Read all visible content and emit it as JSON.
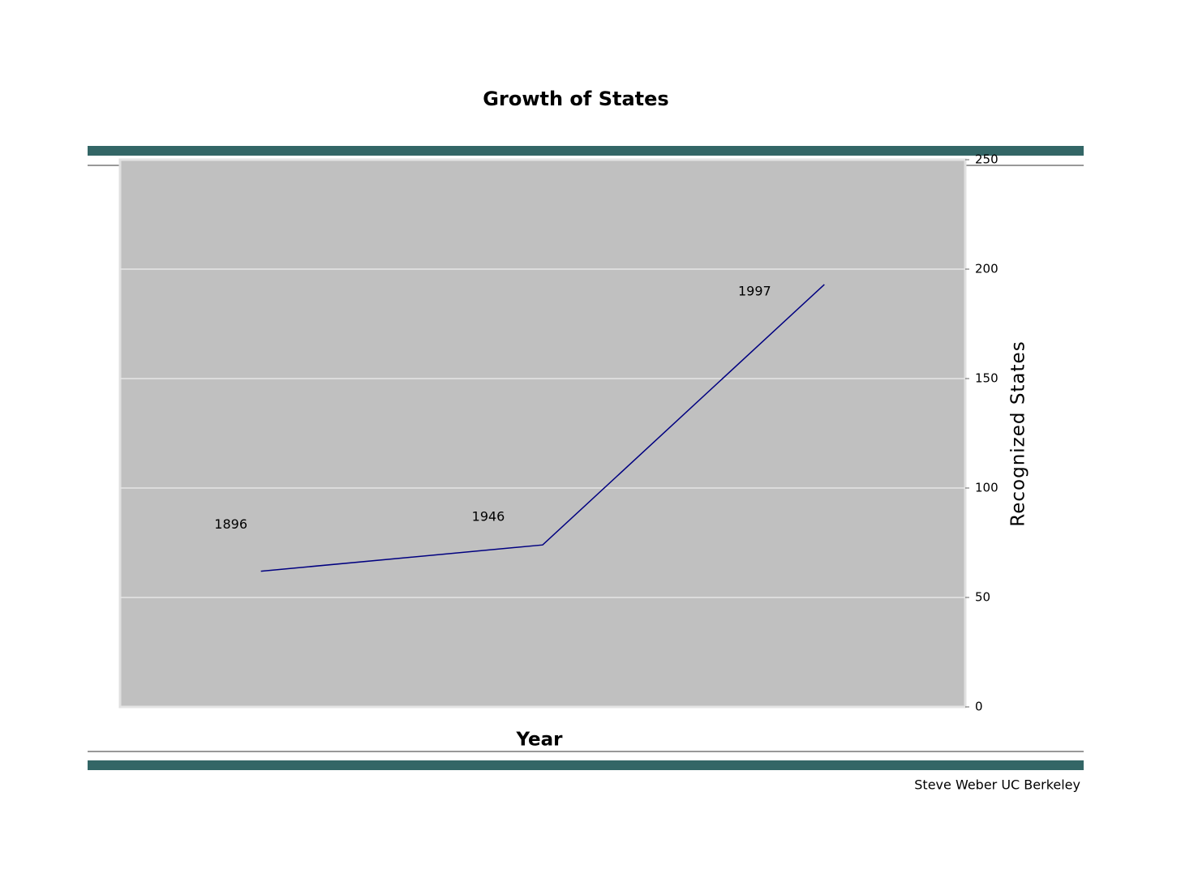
{
  "chart_data": {
    "type": "line",
    "title": "Growth of States",
    "categories": [
      "1896",
      "1946",
      "1997"
    ],
    "series": [
      {
        "name": "Recognized States",
        "color": "#000080",
        "values": [
          62,
          74,
          193
        ]
      }
    ],
    "x_label": "Year",
    "y_label": "Recognized States",
    "ylim": [
      0,
      250
    ],
    "yticks": [
      0,
      50,
      100,
      150,
      200,
      250
    ],
    "grid": true,
    "plot_background": "#c0c0c0",
    "axis_side": "right",
    "footer": "Steve Weber UC Berkeley"
  }
}
